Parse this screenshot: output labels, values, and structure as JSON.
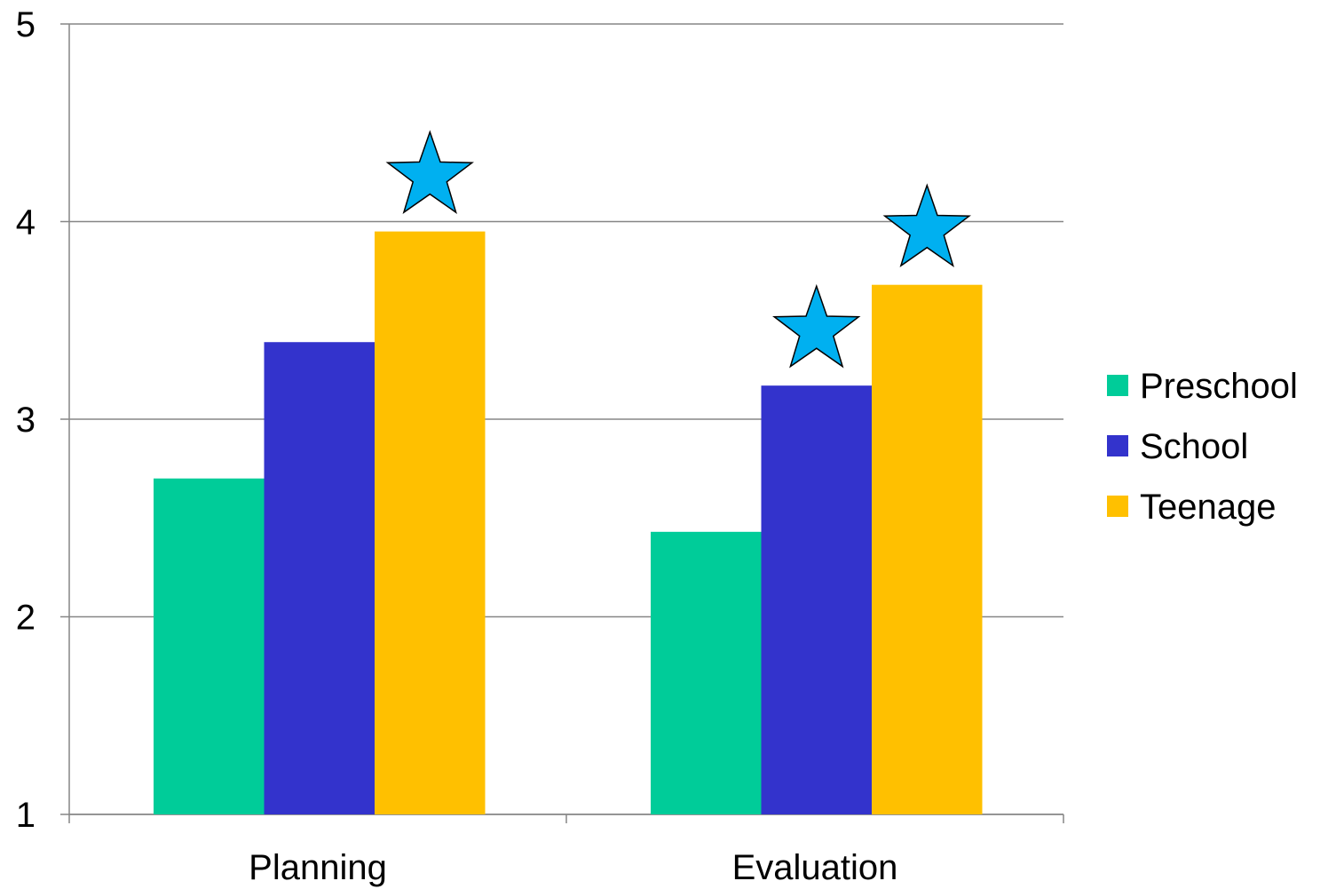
{
  "chart_data": {
    "type": "bar",
    "title": "",
    "xlabel": "",
    "ylabel": "",
    "categories": [
      "Planning",
      "Evaluation"
    ],
    "ylim": [
      1,
      5
    ],
    "yticks": [
      1,
      2,
      3,
      4,
      5
    ],
    "grid": true,
    "legend_position": "right",
    "series": [
      {
        "name": "Preschool",
        "color": "#00CC99",
        "values": [
          2.7,
          2.43
        ]
      },
      {
        "name": "School",
        "color": "#3333CC",
        "values": [
          3.39,
          3.17
        ]
      },
      {
        "name": "Teenage",
        "color": "#FFC000",
        "values": [
          3.95,
          3.68
        ]
      }
    ],
    "significance_markers": {
      "symbol": "star",
      "color": "#00B0F0",
      "marks": [
        {
          "category": "Planning",
          "series": "Teenage"
        },
        {
          "category": "Evaluation",
          "series": "School"
        },
        {
          "category": "Evaluation",
          "series": "Teenage"
        }
      ]
    }
  }
}
